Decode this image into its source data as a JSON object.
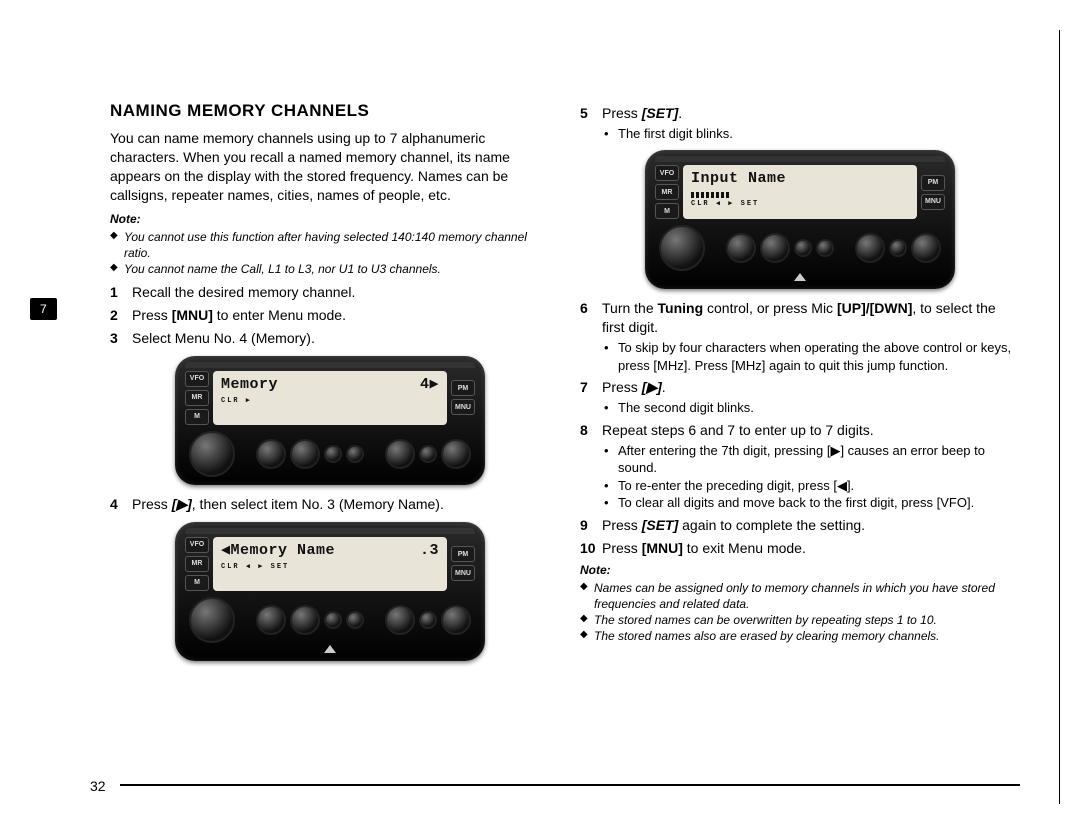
{
  "tab_number": "7",
  "page_number": "32",
  "heading": "NAMING MEMORY CHANNELS",
  "intro": "You can name memory channels using up to 7 alphanumeric characters. When you recall a named memory channel, its name appears on the display with the stored frequency. Names can be callsigns, repeater names, cities, names of people, etc.",
  "note1_label": "Note:",
  "note1": [
    "You cannot use this function after having selected 140:140 memory channel ratio.",
    "You cannot name the Call, L1 to L3, nor U1 to U3 channels."
  ],
  "steps_left": [
    {
      "n": "1",
      "t": "Recall the desired memory channel."
    },
    {
      "n": "2",
      "t_pre": "Press ",
      "key": "[MNU]",
      "t_post": " to enter Menu mode."
    },
    {
      "n": "3",
      "t": "Select Menu No. 4 (Memory)."
    },
    {
      "n": "4",
      "t_pre": "Press ",
      "key": "[▶]",
      "t_post": ", then select item No. 3 (Memory Name)."
    }
  ],
  "steps_right": [
    {
      "n": "5",
      "t_pre": "Press ",
      "key": "[SET]",
      "t_post": ".",
      "sub": [
        "The first digit blinks."
      ]
    },
    {
      "n": "6",
      "t_pre": "Turn the ",
      "bold": "Tuning",
      "mid": " control, or press Mic ",
      "key": "[UP]/[DWN]",
      "t_post": ", to select the first digit.",
      "sub": [
        "To skip by four characters when operating the above control or keys, press [MHz]. Press [MHz] again to quit this jump function."
      ]
    },
    {
      "n": "7",
      "t_pre": "Press ",
      "key": "[▶]",
      "t_post": ".",
      "sub": [
        "The second digit blinks."
      ]
    },
    {
      "n": "8",
      "t": "Repeat steps 6 and 7 to enter up to 7 digits.",
      "sub": [
        "After entering the 7th digit, pressing [▶] causes an error beep to sound.",
        "To re-enter the preceding digit, press [◀].",
        "To clear all digits and move back to the first digit, press [VFO]."
      ]
    },
    {
      "n": "9",
      "t_pre": "Press ",
      "key": "[SET]",
      "t_post": " again to complete the setting."
    },
    {
      "n": "10",
      "t_pre": "Press ",
      "key": "[MNU]",
      "t_post": " to exit Menu mode."
    }
  ],
  "note2_label": "Note:",
  "note2": [
    "Names can be assigned only to memory channels in which you have stored frequencies and related data.",
    "The stored names can be overwritten by repeating steps 1 to 10.",
    "The stored names also are erased by clearing memory channels."
  ],
  "lcd1": {
    "left": "Memory",
    "right": "4▶",
    "line2": "CLR   ▶"
  },
  "lcd2": {
    "left": "◀Memory Name",
    "right": ".3",
    "line2": "CLR  ◀  ▶  SET"
  },
  "lcd3": {
    "left": "Input Name",
    "right": "",
    "line2": "CLR  ◀  ▶  SET"
  },
  "side_btns_left": [
    "VFO",
    "MR",
    "M"
  ],
  "side_btns_right": [
    "PM",
    "MNU"
  ]
}
